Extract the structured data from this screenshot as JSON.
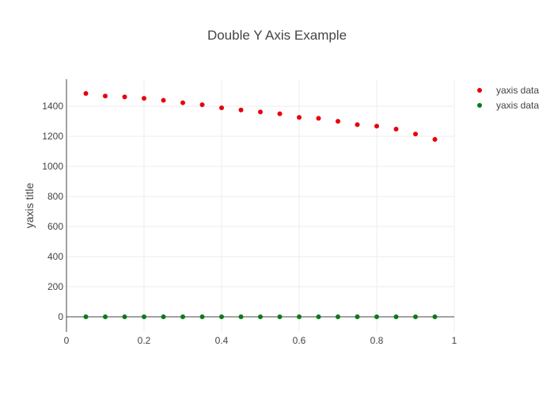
{
  "chart_data": {
    "type": "scatter",
    "title": "Double Y Axis Example",
    "xlabel": "",
    "ylabel": "yaxis title",
    "xlim": [
      0,
      1
    ],
    "ylim": [
      -100,
      1580
    ],
    "x_ticks": [
      0,
      0.2,
      0.4,
      0.6,
      0.8,
      1
    ],
    "x_tick_labels": [
      "0",
      "0.2",
      "0.4",
      "0.6",
      "0.8",
      "1"
    ],
    "y_ticks": [
      0,
      200,
      400,
      600,
      800,
      1000,
      1200,
      1400
    ],
    "y_tick_labels": [
      "0",
      "200",
      "400",
      "600",
      "800",
      "1000",
      "1200",
      "1400"
    ],
    "grid": true,
    "legend_position": "top-right",
    "series": [
      {
        "name": "yaxis data",
        "color": "#e8000b",
        "x": [
          0.05,
          0.1,
          0.15,
          0.2,
          0.25,
          0.3,
          0.35,
          0.4,
          0.45,
          0.5,
          0.55,
          0.6,
          0.65,
          0.7,
          0.75,
          0.8,
          0.85,
          0.9,
          0.95
        ],
        "y": [
          1485,
          1468,
          1462,
          1453,
          1440,
          1423,
          1410,
          1390,
          1375,
          1362,
          1350,
          1326,
          1320,
          1300,
          1278,
          1268,
          1248,
          1215,
          1180
        ]
      },
      {
        "name": "yaxis data",
        "color": "#0b7a16",
        "x": [
          0.05,
          0.1,
          0.15,
          0.2,
          0.25,
          0.3,
          0.35,
          0.4,
          0.45,
          0.5,
          0.55,
          0.6,
          0.65,
          0.7,
          0.75,
          0.8,
          0.85,
          0.9,
          0.95
        ],
        "y": [
          0,
          0,
          0,
          0,
          0,
          0,
          0,
          0,
          0,
          0,
          0,
          0,
          0,
          0,
          0,
          0,
          0,
          0,
          0
        ]
      }
    ]
  }
}
